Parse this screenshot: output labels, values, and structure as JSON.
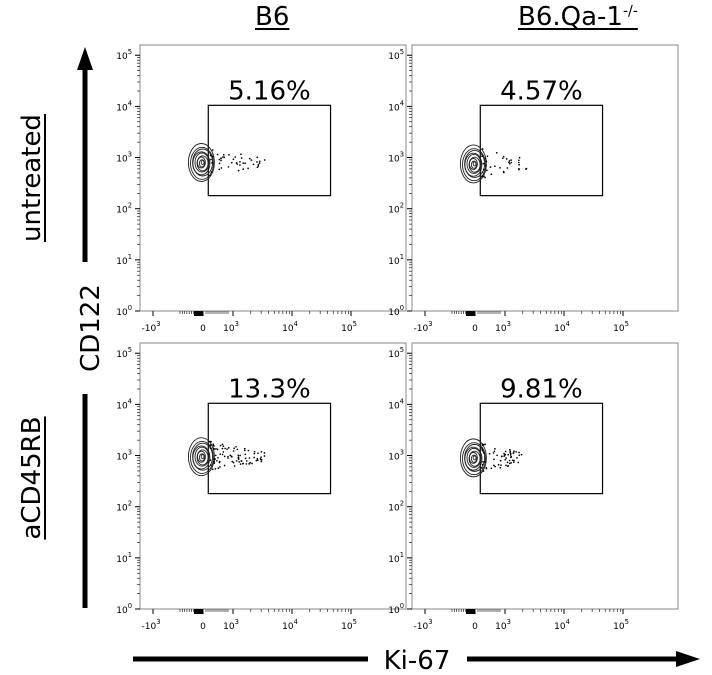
{
  "columns": [
    {
      "main": "B6",
      "sup": ""
    },
    {
      "main": "B6.Qa-1",
      "sup": "-/-"
    }
  ],
  "rows": [
    "untreated",
    "aCD45RB"
  ],
  "chart_data": {
    "type": "scatter",
    "subtype": "flow-cytometry-contour-grid",
    "y_axis": {
      "label": "CD122",
      "scale": "log",
      "ticks": [
        {
          "value": 1,
          "base": "10",
          "exp": "0"
        },
        {
          "value": 10,
          "base": "10",
          "exp": "1"
        },
        {
          "value": 100,
          "base": "10",
          "exp": "2"
        },
        {
          "value": 1000,
          "base": "10",
          "exp": "3"
        },
        {
          "value": 10000,
          "base": "10",
          "exp": "4"
        },
        {
          "value": 100000,
          "base": "10",
          "exp": "5"
        }
      ]
    },
    "x_axis": {
      "label": "Ki-67",
      "scale": "biexponential",
      "ticks": [
        {
          "value": -1000,
          "base": "-10",
          "exp": "3"
        },
        {
          "value": 0,
          "base": "0",
          "exp": ""
        },
        {
          "value": 1000,
          "base": "10",
          "exp": "3"
        },
        {
          "value": 10000,
          "base": "10",
          "exp": "4"
        },
        {
          "value": 100000,
          "base": "10",
          "exp": "5"
        }
      ]
    },
    "gate": {
      "x_min": 150,
      "x_max": 45000,
      "y_min": 180,
      "y_max": 10500
    },
    "panels": [
      {
        "row": "untreated",
        "column": "B6",
        "gate_percent": "5.16%",
        "cluster": {
          "x": 0,
          "y": 800
        }
      },
      {
        "row": "untreated",
        "column": "B6.Qa-1-/-",
        "gate_percent": "4.57%",
        "cluster": {
          "x": 0,
          "y": 750
        }
      },
      {
        "row": "aCD45RB",
        "column": "B6",
        "gate_percent": "13.3%",
        "cluster": {
          "x": 0,
          "y": 950
        }
      },
      {
        "row": "aCD45RB",
        "column": "B6.Qa-1-/-",
        "gate_percent": "9.81%",
        "cluster": {
          "x": 0,
          "y": 900
        }
      }
    ]
  }
}
